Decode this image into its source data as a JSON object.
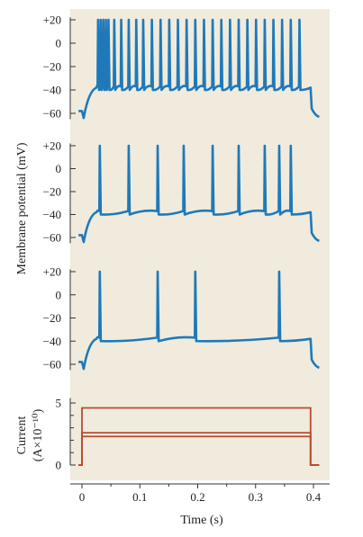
{
  "chart_data": [
    {
      "type": "line",
      "panel": "voltage-top",
      "y_ticks": [
        {
          "value": 20,
          "label": "+20"
        },
        {
          "value": 0,
          "label": "0"
        },
        {
          "value": -20,
          "label": "−20"
        },
        {
          "value": -40,
          "label": "−40"
        },
        {
          "value": -60,
          "label": "−60"
        }
      ],
      "ylim": [
        -65,
        22
      ],
      "rest_mv": -58,
      "plateau_mv": -38,
      "spike_peak_mv": 20,
      "spike_times_s": [
        0.01,
        0.016,
        0.025,
        0.035,
        0.045,
        0.055,
        0.067,
        0.08,
        0.093,
        0.105,
        0.12,
        0.135,
        0.15,
        0.165,
        0.18,
        0.195,
        0.21,
        0.225,
        0.24,
        0.255,
        0.27,
        0.285,
        0.3,
        0.315,
        0.33,
        0.345,
        0.36,
        0.375
      ],
      "stimulus_on_s": 0.0,
      "stimulus_off_s": 0.395
    },
    {
      "type": "line",
      "panel": "voltage-middle",
      "y_ticks": [
        {
          "value": 20,
          "label": "+20"
        },
        {
          "value": 0,
          "label": "0"
        },
        {
          "value": -20,
          "label": "−20"
        },
        {
          "value": -40,
          "label": "−40"
        },
        {
          "value": -60,
          "label": "−60"
        }
      ],
      "ylim": [
        -65,
        22
      ],
      "rest_mv": -58,
      "plateau_mv": -38,
      "spike_peak_mv": 20,
      "spike_times_s": [
        0.03,
        0.08,
        0.13,
        0.175,
        0.225,
        0.27,
        0.315,
        0.34,
        0.36
      ],
      "stimulus_on_s": 0.0,
      "stimulus_off_s": 0.395
    },
    {
      "type": "line",
      "panel": "voltage-bottom",
      "y_ticks": [
        {
          "value": 20,
          "label": "+20"
        },
        {
          "value": 0,
          "label": "0"
        },
        {
          "value": -20,
          "label": "−20"
        },
        {
          "value": -40,
          "label": "−40"
        },
        {
          "value": -60,
          "label": "−60"
        }
      ],
      "ylim": [
        -65,
        22
      ],
      "rest_mv": -58,
      "plateau_mv": -38,
      "spike_peak_mv": 20,
      "spike_times_s": [
        0.03,
        0.13,
        0.195,
        0.34
      ],
      "stimulus_on_s": 0.0,
      "stimulus_off_s": 0.395
    },
    {
      "type": "line",
      "panel": "current",
      "y_ticks": [
        {
          "value": 5,
          "label": "5"
        },
        {
          "value": 0,
          "label": "0"
        }
      ],
      "ylim": [
        0,
        5
      ],
      "steps": [
        {
          "level": 4.6,
          "on": 0.0,
          "off": 0.395
        },
        {
          "level": 2.6,
          "on": 0.0,
          "off": 0.395
        },
        {
          "level": 2.3,
          "on": 0.0,
          "off": 0.395
        }
      ],
      "x_ticks": [
        {
          "value": 0,
          "label": "0"
        },
        {
          "value": 0.1,
          "label": "0.1"
        },
        {
          "value": 0.2,
          "label": "0.2"
        },
        {
          "value": 0.3,
          "label": "0.3"
        },
        {
          "value": 0.4,
          "label": "0.4"
        }
      ],
      "xlim": [
        -0.006,
        0.41
      ]
    }
  ],
  "labels": {
    "membrane_ylabel": "Membrane potential (mV)",
    "current_ylabel_1": "Current",
    "current_ylabel_2": "(A×10⁻¹⁰)",
    "xlabel": "Time (s)"
  },
  "colors": {
    "background": "#f0ebdc",
    "voltage_trace": "#1f79b9",
    "current_trace": "#bb4a32",
    "axis": "#333333"
  }
}
